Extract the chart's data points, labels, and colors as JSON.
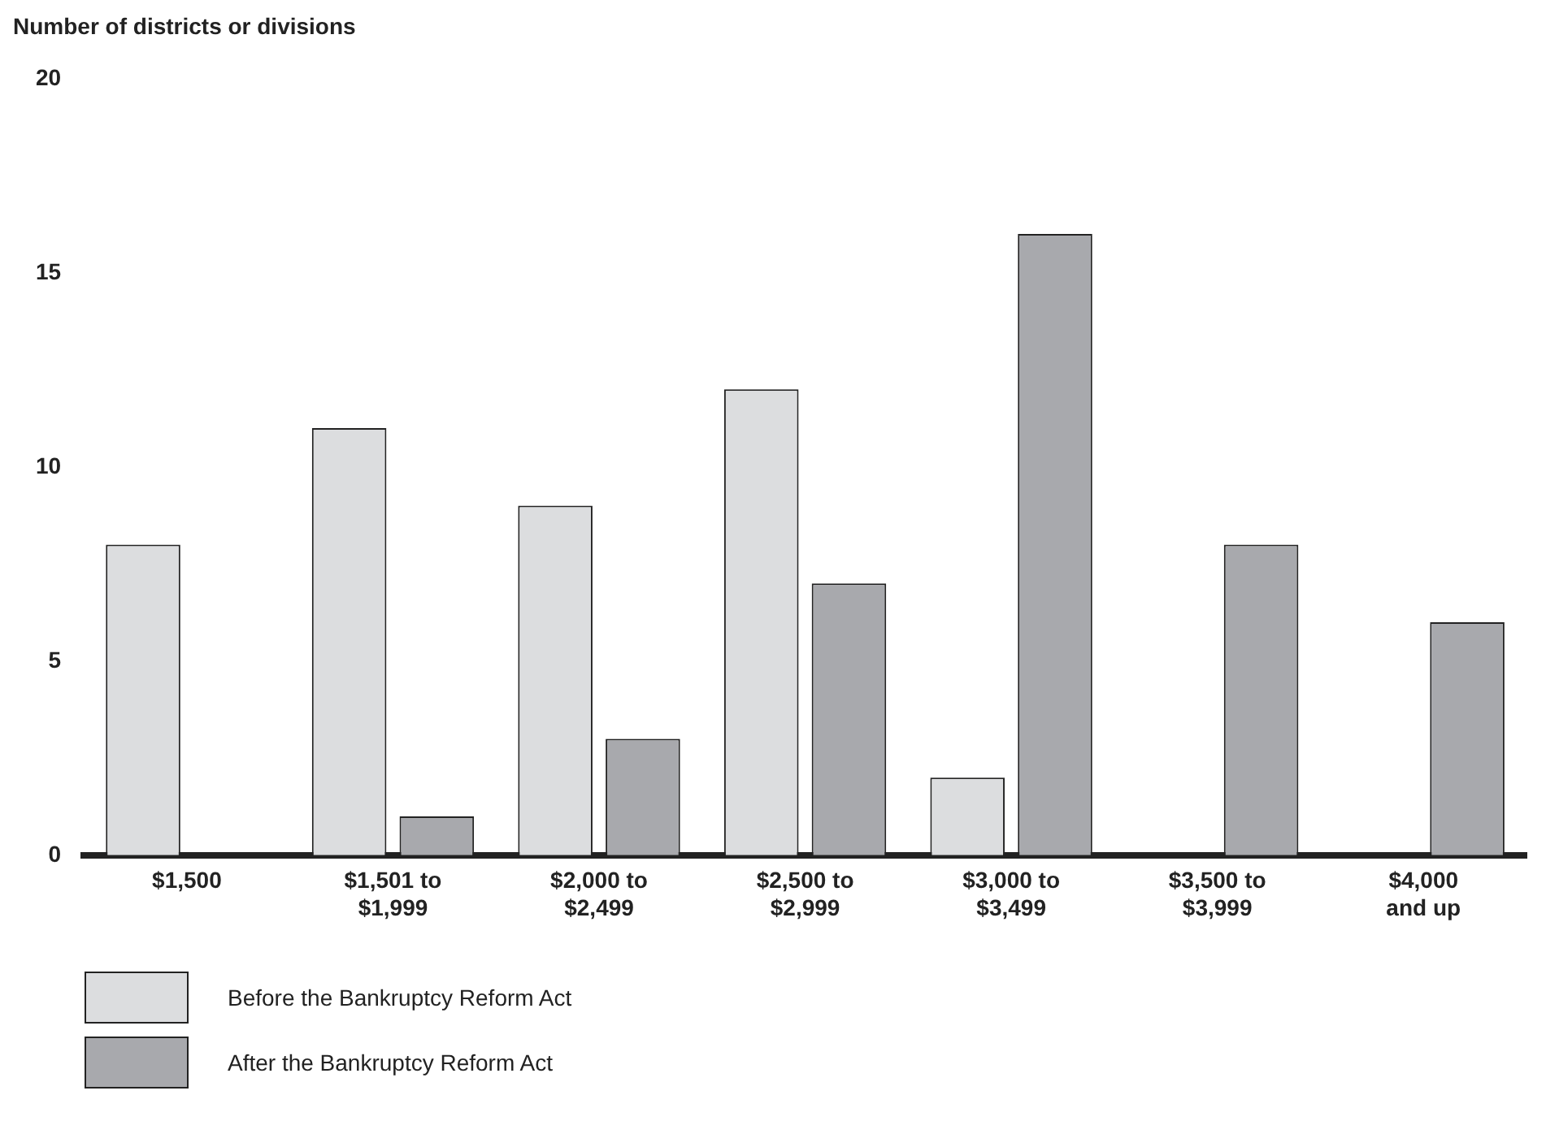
{
  "chart_data": {
    "type": "bar",
    "ylabel": "Number of districts or divisions",
    "categories": [
      "$1,500",
      "$1,501 to $1,999",
      "$2,000 to $2,499",
      "$2,500 to $2,999",
      "$3,000 to $3,499",
      "$3,500 to $3,999",
      "$4,000 and up"
    ],
    "series": [
      {
        "name": "Before the Bankruptcy Reform Act",
        "color": "#dcdddf",
        "values": [
          8,
          11,
          9,
          12,
          2,
          0,
          0
        ]
      },
      {
        "name": "After the Bankruptcy Reform Act",
        "color": "#a8a9ad",
        "values": [
          0,
          1,
          3,
          7,
          16,
          8,
          6
        ]
      }
    ],
    "ylim": [
      0,
      20
    ],
    "yticks": [
      0,
      5,
      10,
      15,
      20
    ],
    "grid": false,
    "legend": "bottom left"
  }
}
